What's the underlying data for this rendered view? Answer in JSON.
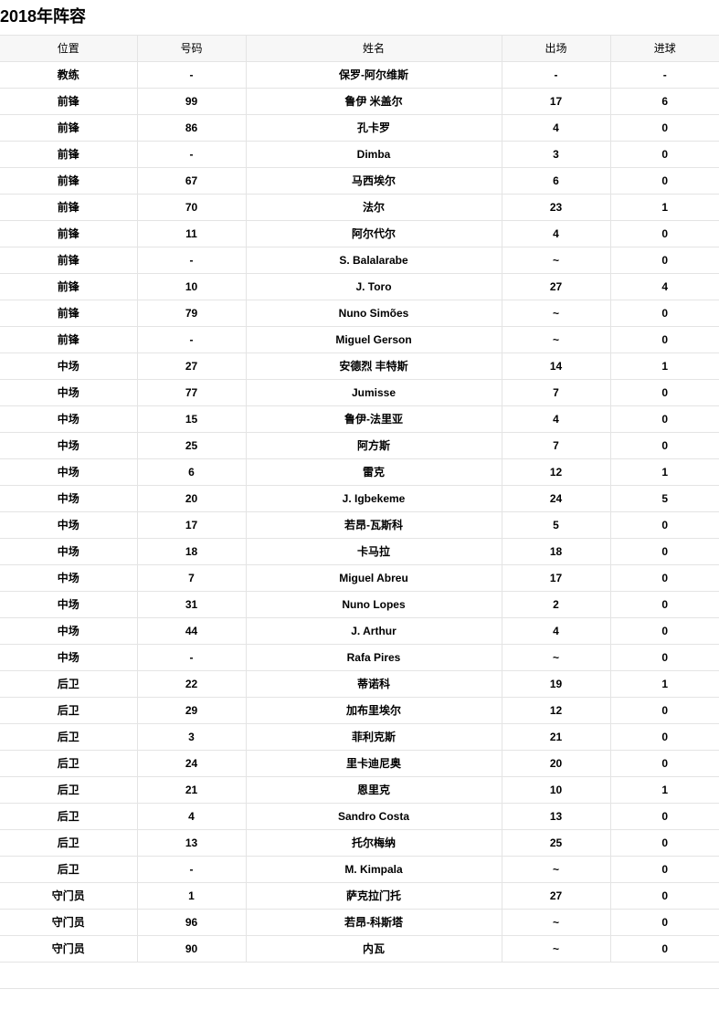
{
  "title": "2018年阵容",
  "headers": [
    "位置",
    "号码",
    "姓名",
    "出场",
    "进球"
  ],
  "rows": [
    [
      "教练",
      "-",
      "保罗-阿尔维斯",
      "-",
      "-"
    ],
    [
      "前锋",
      "99",
      "鲁伊 米盖尔",
      "17",
      "6"
    ],
    [
      "前锋",
      "86",
      "孔卡罗",
      "4",
      "0"
    ],
    [
      "前锋",
      "-",
      "Dimba",
      "3",
      "0"
    ],
    [
      "前锋",
      "67",
      "马西埃尔",
      "6",
      "0"
    ],
    [
      "前锋",
      "70",
      "法尔",
      "23",
      "1"
    ],
    [
      "前锋",
      "11",
      "阿尔代尔",
      "4",
      "0"
    ],
    [
      "前锋",
      "-",
      "S. Balalarabe",
      "~",
      "0"
    ],
    [
      "前锋",
      "10",
      "J. Toro",
      "27",
      "4"
    ],
    [
      "前锋",
      "79",
      "Nuno Simões",
      "~",
      "0"
    ],
    [
      "前锋",
      "-",
      "Miguel Gerson",
      "~",
      "0"
    ],
    [
      "中场",
      "27",
      "安德烈 丰特斯",
      "14",
      "1"
    ],
    [
      "中场",
      "77",
      "Jumisse",
      "7",
      "0"
    ],
    [
      "中场",
      "15",
      "鲁伊-法里亚",
      "4",
      "0"
    ],
    [
      "中场",
      "25",
      "阿方斯",
      "7",
      "0"
    ],
    [
      "中场",
      "6",
      "雷克",
      "12",
      "1"
    ],
    [
      "中场",
      "20",
      "J. Igbekeme",
      "24",
      "5"
    ],
    [
      "中场",
      "17",
      "若昂-瓦斯科",
      "5",
      "0"
    ],
    [
      "中场",
      "18",
      "卡马拉",
      "18",
      "0"
    ],
    [
      "中场",
      "7",
      "Miguel Abreu",
      "17",
      "0"
    ],
    [
      "中场",
      "31",
      "Nuno Lopes",
      "2",
      "0"
    ],
    [
      "中场",
      "44",
      "J. Arthur",
      "4",
      "0"
    ],
    [
      "中场",
      "-",
      "Rafa Pires",
      "~",
      "0"
    ],
    [
      "后卫",
      "22",
      "蒂诺科",
      "19",
      "1"
    ],
    [
      "后卫",
      "29",
      "加布里埃尔",
      "12",
      "0"
    ],
    [
      "后卫",
      "3",
      "菲利克斯",
      "21",
      "0"
    ],
    [
      "后卫",
      "24",
      "里卡迪尼奥",
      "20",
      "0"
    ],
    [
      "后卫",
      "21",
      "恩里克",
      "10",
      "1"
    ],
    [
      "后卫",
      "4",
      "Sandro Costa",
      "13",
      "0"
    ],
    [
      "后卫",
      "13",
      "托尔梅纳",
      "25",
      "0"
    ],
    [
      "后卫",
      "-",
      "M. Kimpala",
      "~",
      "0"
    ],
    [
      "守门员",
      "1",
      "萨克拉门托",
      "27",
      "0"
    ],
    [
      "守门员",
      "96",
      "若昂-科斯塔",
      "~",
      "0"
    ],
    [
      "守门员",
      "90",
      "内瓦",
      "~",
      "0"
    ]
  ]
}
